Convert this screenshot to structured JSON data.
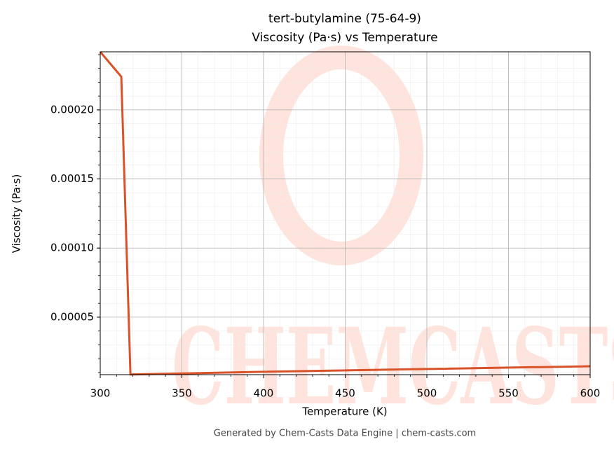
{
  "chart_data": {
    "type": "line",
    "title": "tert-butylamine (75-64-9)",
    "subtitle": "Viscosity (Pa·s) vs Temperature",
    "xlabel": "Temperature (K)",
    "ylabel": "Viscosity (Pa·s)",
    "footer": "Generated by Chem-Casts Data Engine | chem-casts.com",
    "watermark": "CHEMCASTS",
    "x": [
      300,
      312.9,
      318.5,
      400,
      500,
      600
    ],
    "series": [
      {
        "name": "Viscosity",
        "color": "#d9532a",
        "values": [
          0.000242,
          0.000224,
          8.5e-06,
          1.05e-05,
          1.25e-05,
          1.45e-05
        ]
      }
    ],
    "xlim": [
      300,
      600
    ],
    "xticks": [
      300,
      350,
      400,
      450,
      500,
      550,
      600
    ],
    "ylim": [
      8.4e-06,
      0.000242
    ],
    "yticks": [
      {
        "value": 5e-05,
        "label": "0.00005"
      },
      {
        "value": 0.0001,
        "label": "0.00010"
      },
      {
        "value": 0.00015,
        "label": "0.00015"
      },
      {
        "value": 0.0002,
        "label": "0.00020"
      }
    ],
    "grid": true,
    "minor_grid": true
  }
}
